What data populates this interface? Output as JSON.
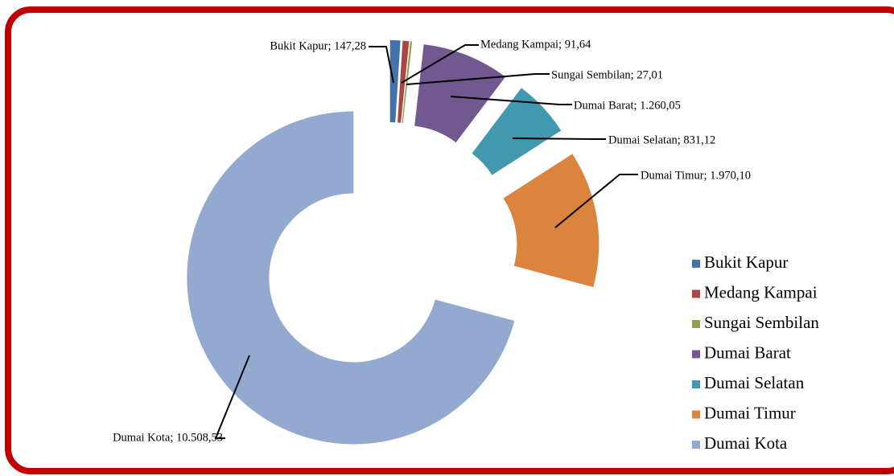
{
  "chart_data": {
    "type": "donut",
    "categories": [
      "Bukit Kapur",
      "Medang Kampai",
      "Sungai Sembilan",
      "Dumai Barat",
      "Dumai Selatan",
      "Dumai Timur",
      "Dumai Kota"
    ],
    "values": [
      147.28,
      91.64,
      27.01,
      1260.05,
      831.12,
      1970.1,
      10508.53
    ],
    "value_labels": [
      "Bukit Kapur;  147,28",
      "Medang Kampai;  91,64",
      "Sungai Sembilan;  27,01",
      "Dumai Barat;  1.260,05",
      "Dumai Selatan;  831,12",
      "Dumai Timur;  1.970,10",
      "Dumai Kota;  10.508,53"
    ],
    "colors": [
      "#4572a7",
      "#aa4643",
      "#89a54e",
      "#71588f",
      "#4198af",
      "#db843d",
      "#93a9cf"
    ],
    "legend": "right"
  }
}
